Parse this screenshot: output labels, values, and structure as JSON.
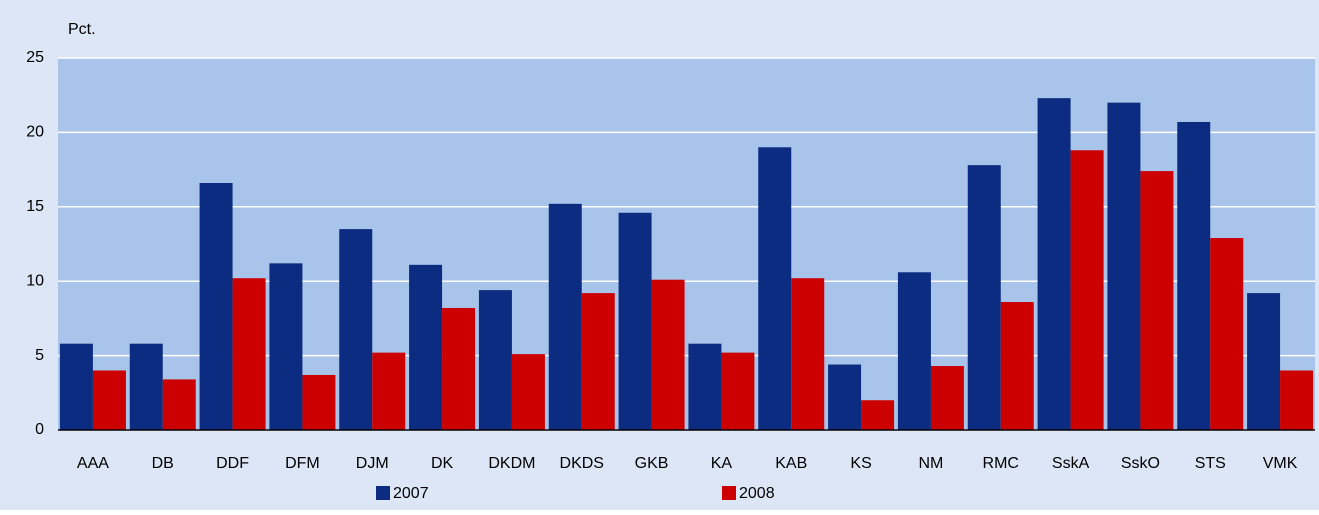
{
  "chart_data": {
    "type": "bar",
    "y_label": "Pct.",
    "categories": [
      "AAA",
      "DB",
      "DDF",
      "DFM",
      "DJM",
      "DK",
      "DKDM",
      "DKDS",
      "GKB",
      "KA",
      "KAB",
      "KS",
      "NM",
      "RMC",
      "SskA",
      "SskO",
      "STS",
      "VMK"
    ],
    "series": [
      {
        "name": "2007",
        "color": "#0b2c80",
        "values": [
          5.8,
          5.8,
          16.6,
          11.2,
          13.5,
          11.1,
          9.4,
          15.2,
          14.6,
          5.8,
          19.0,
          4.4,
          10.6,
          17.8,
          22.3,
          22.0,
          20.7,
          9.2
        ]
      },
      {
        "name": "2008",
        "color": "#cc0000",
        "values": [
          4.0,
          3.4,
          10.2,
          3.7,
          5.2,
          8.2,
          5.1,
          9.2,
          10.1,
          5.2,
          10.2,
          2.0,
          4.3,
          8.6,
          18.8,
          17.4,
          12.9,
          4.0
        ]
      }
    ],
    "ylim": [
      0,
      25
    ],
    "yticks": [
      0,
      5,
      10,
      15,
      20,
      25
    ],
    "grid": true
  }
}
